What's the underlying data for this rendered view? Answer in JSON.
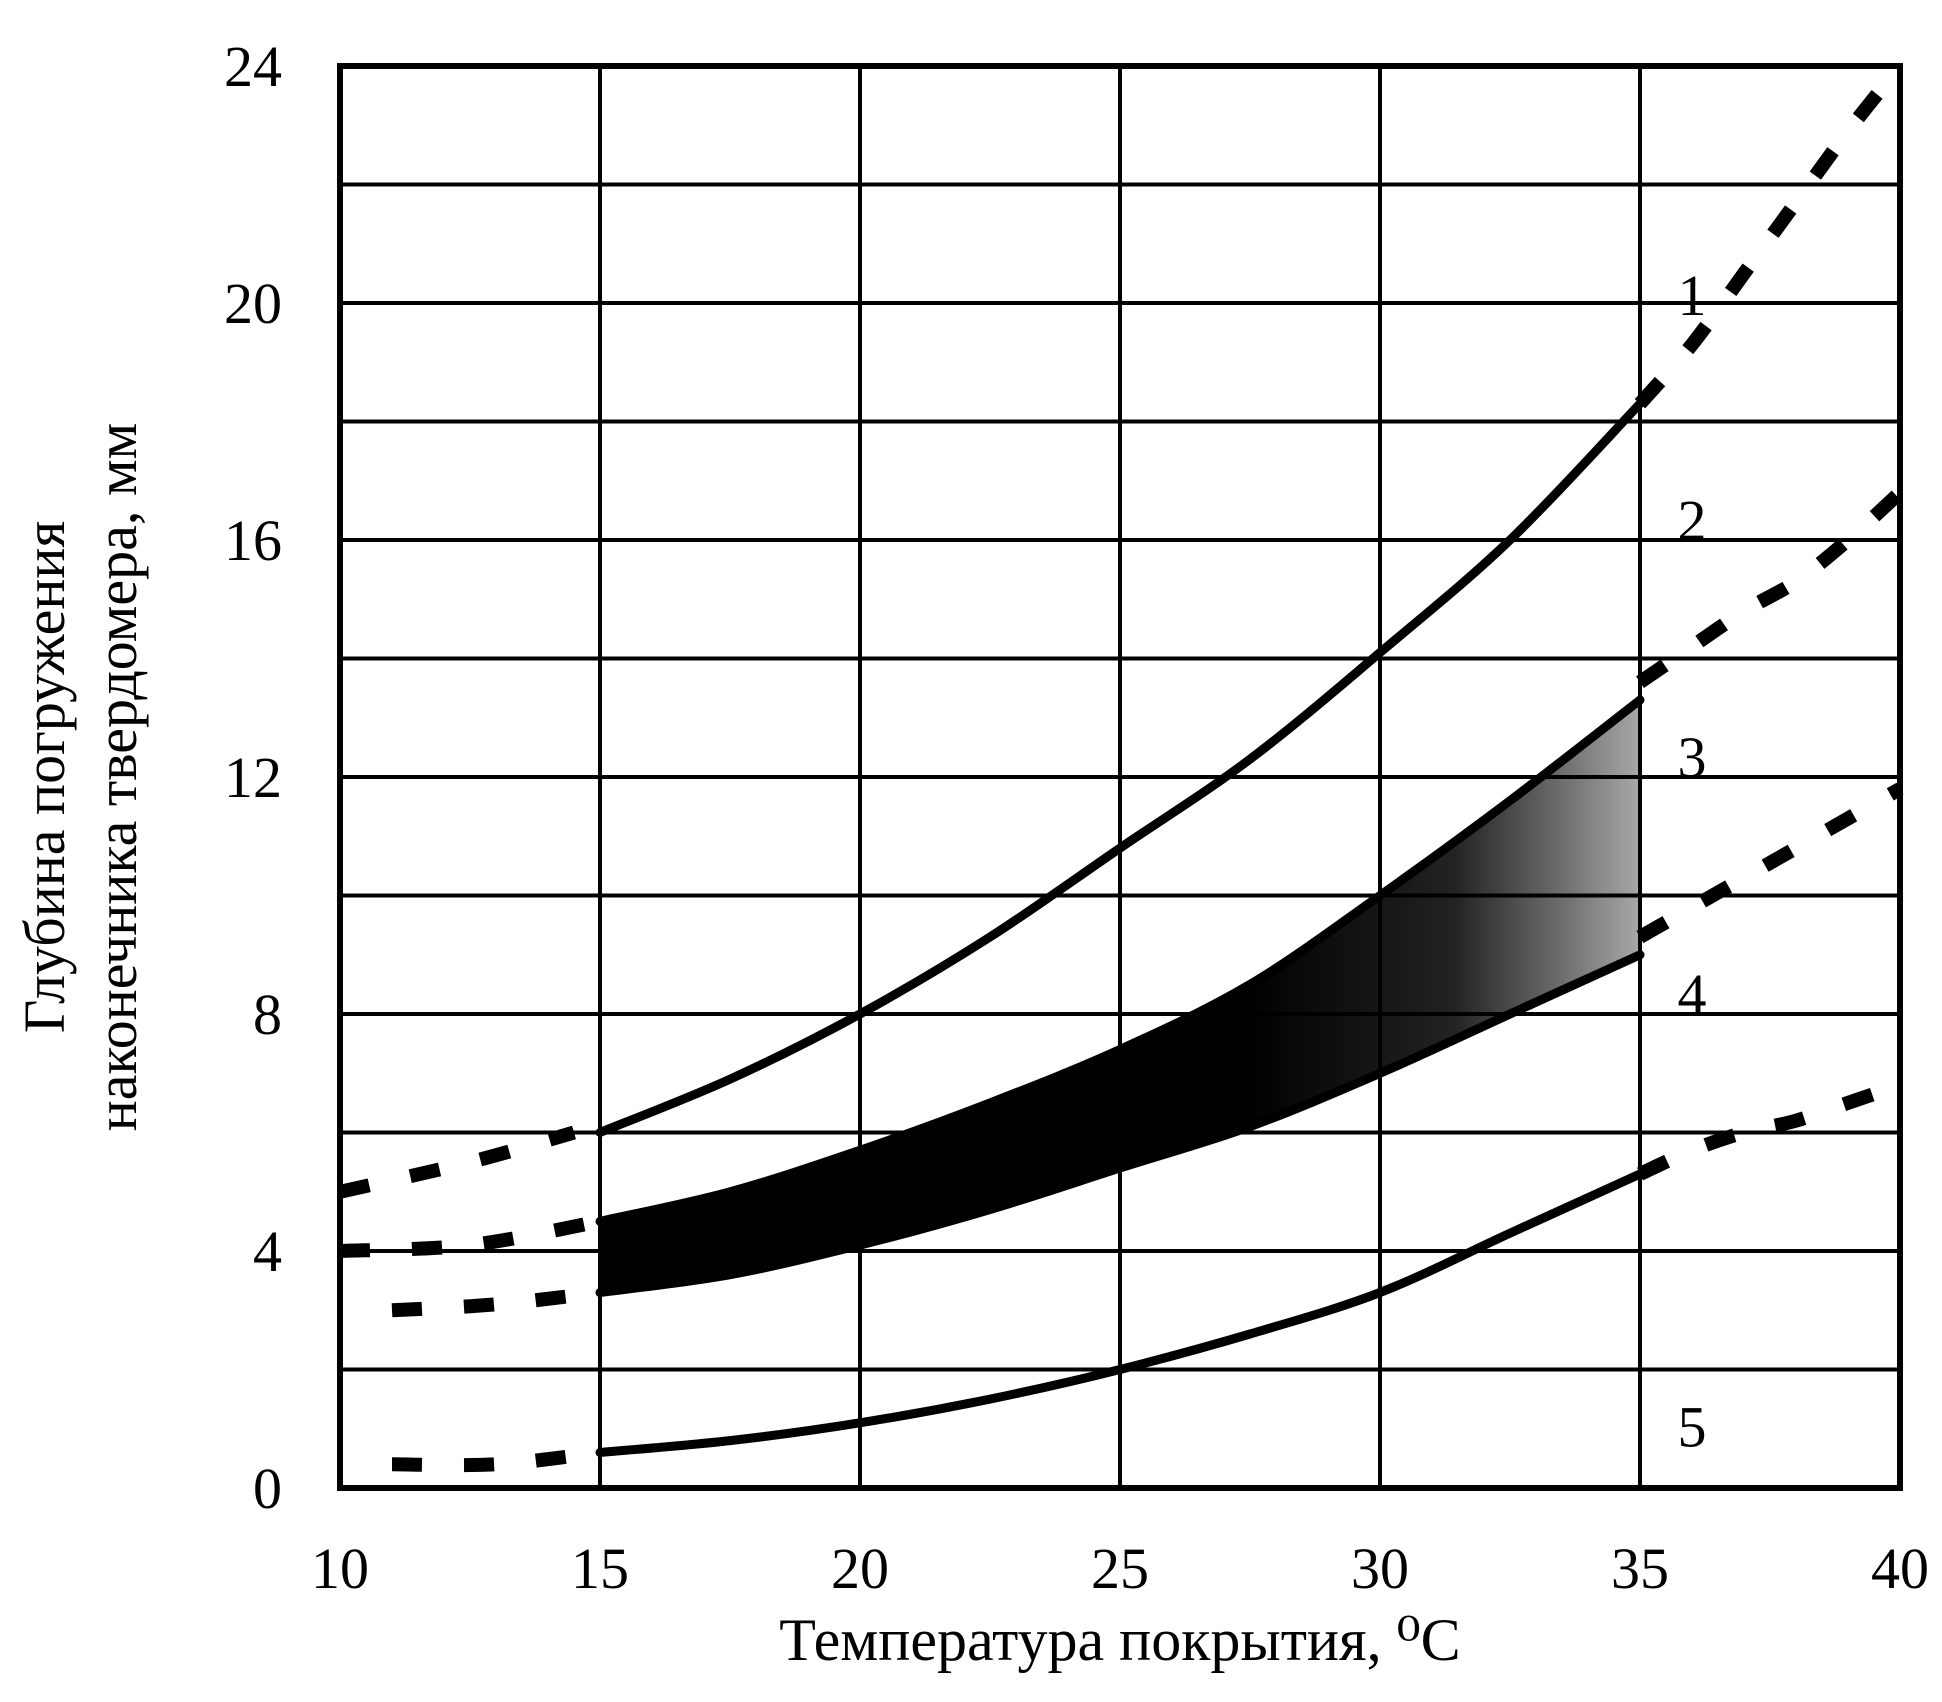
{
  "chart_data": {
    "type": "line",
    "xlabel": "Температура покрытия, ⁰C",
    "ylabel_lines": [
      "Глубина погружения",
      "наконечника твердомера, мм"
    ],
    "xlim": [
      10,
      40
    ],
    "ylim": [
      0,
      24
    ],
    "x_ticks": [
      "10",
      "15",
      "20",
      "25",
      "30",
      "35",
      "40"
    ],
    "y_ticks": [
      "0",
      "4",
      "8",
      "12",
      "16",
      "20",
      "24"
    ],
    "grid": true,
    "colors": {
      "line": "#000000",
      "band": "#000000",
      "band_light": "#9a9a9a"
    },
    "series": [
      {
        "name": "1",
        "solid": {
          "x": [
            15,
            17.5,
            20,
            22.5,
            25,
            27.5,
            30,
            32.5,
            35
          ],
          "y": [
            6.0,
            6.9,
            8.0,
            9.3,
            10.8,
            12.3,
            14.1,
            16.0,
            18.3
          ]
        },
        "dashed_left": {
          "x": [
            10,
            12.5,
            14.5
          ],
          "y": [
            5.0,
            5.5,
            6.0
          ]
        },
        "dashed_right": {
          "x": [
            35,
            36,
            37,
            38,
            39,
            40
          ],
          "y": [
            18.3,
            19.3,
            20.5,
            21.7,
            22.9,
            24.0
          ]
        }
      },
      {
        "name": "2",
        "solid": {
          "x": [
            15,
            17.5,
            20,
            22.5,
            25,
            27.5,
            30,
            32.5,
            35
          ],
          "y": [
            4.5,
            5.0,
            5.7,
            6.5,
            7.4,
            8.5,
            10.0,
            11.6,
            13.3
          ]
        },
        "dashed_left": {
          "x": [
            10,
            12.5,
            15
          ],
          "y": [
            4.0,
            4.1,
            4.5
          ]
        },
        "dashed_right": {
          "x": [
            35,
            36,
            37,
            38,
            39,
            40
          ],
          "y": [
            13.6,
            14.2,
            14.8,
            15.3,
            16.0,
            16.8
          ]
        }
      },
      {
        "name": "3",
        "solid": {
          "x": [
            15,
            17.5,
            20,
            22.5,
            25,
            27.5,
            30,
            32.5,
            35
          ],
          "y": [
            3.3,
            3.6,
            4.1,
            4.7,
            5.4,
            6.1,
            7.0,
            8.0,
            9.0
          ]
        },
        "dashed_left": {
          "x": [
            11,
            13,
            15
          ],
          "y": [
            3.0,
            3.1,
            3.3
          ]
        },
        "dashed_right": {
          "x": [
            35,
            36,
            37,
            38,
            39,
            40
          ],
          "y": [
            9.3,
            9.8,
            10.3,
            10.8,
            11.3,
            11.8
          ]
        }
      },
      {
        "name": "5",
        "solid": {
          "x": [
            15,
            17.5,
            20,
            22.5,
            25,
            27.5,
            30,
            32.5,
            35
          ],
          "y": [
            0.6,
            0.8,
            1.1,
            1.5,
            2.0,
            2.6,
            3.3,
            4.3,
            5.3
          ]
        },
        "dashed_left": {
          "x": [
            11,
            13,
            15
          ],
          "y": [
            0.4,
            0.4,
            0.6
          ]
        },
        "dashed_right": {
          "x": [
            35,
            36,
            37,
            38,
            39,
            40
          ],
          "y": [
            5.3,
            5.7,
            6.0,
            6.2,
            6.5,
            6.8
          ]
        }
      }
    ],
    "curve_labels": [
      {
        "text": "1",
        "x": 36.0,
        "y": 19.8
      },
      {
        "text": "2",
        "x": 36.0,
        "y": 16.0
      },
      {
        "text": "3",
        "x": 36.0,
        "y": 12.0
      },
      {
        "text": "4",
        "x": 36.0,
        "y": 8.0
      },
      {
        "text": "5",
        "x": 36.0,
        "y": 0.7
      }
    ],
    "band": {
      "between": [
        "2",
        "3"
      ],
      "x_range": [
        15,
        35
      ]
    }
  }
}
